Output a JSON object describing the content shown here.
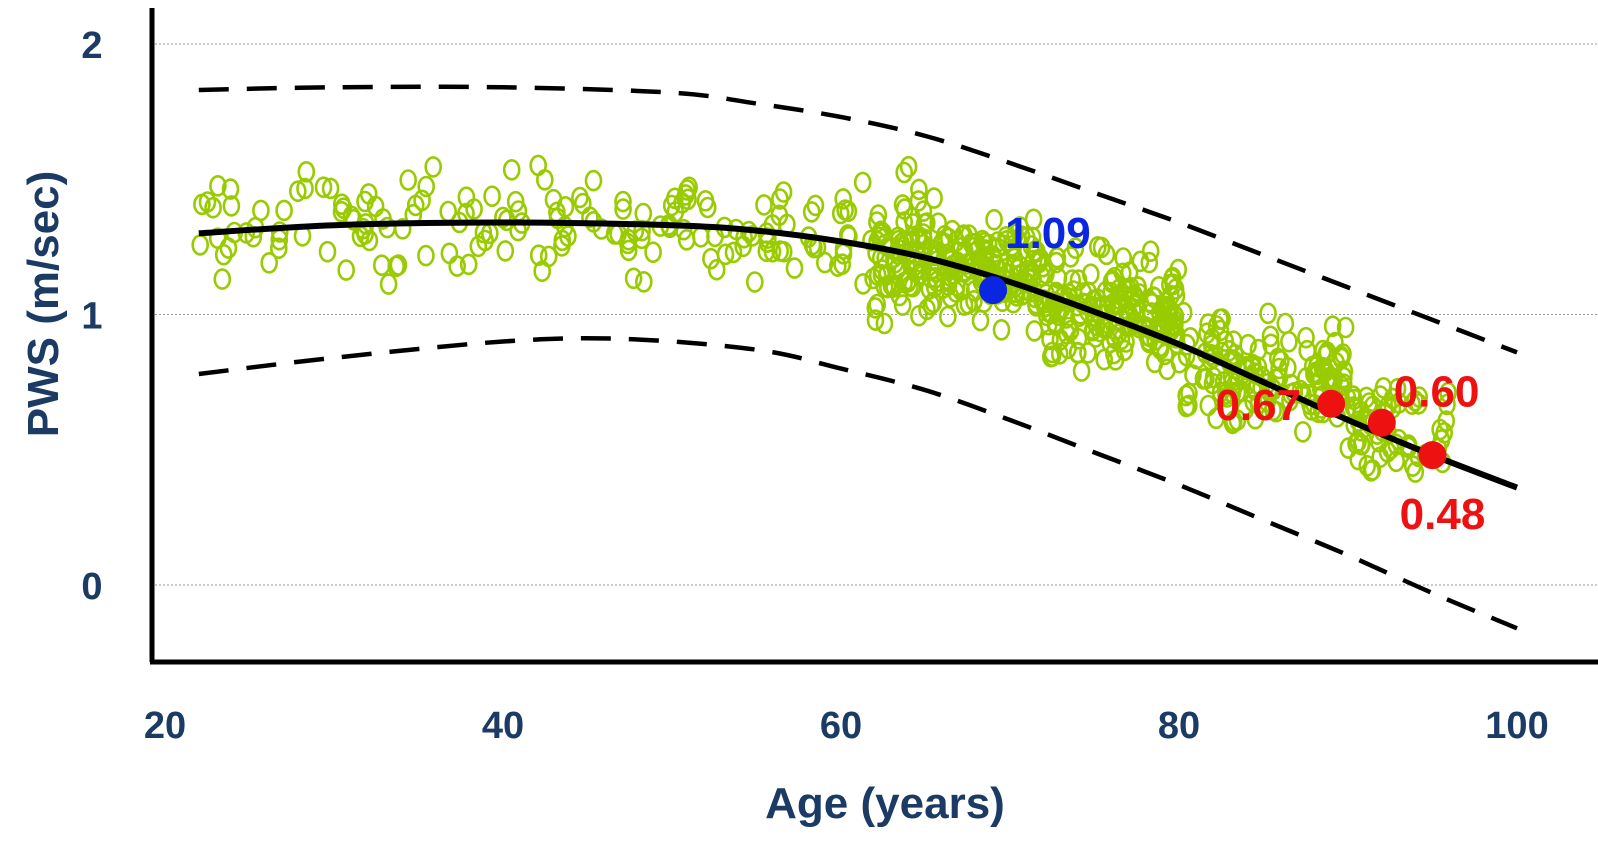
{
  "chart_data": {
    "type": "scatter",
    "xlabel": "Age (years)",
    "ylabel": "PWS (m/sec)",
    "xlim": [
      20,
      100
    ],
    "ylim": [
      -0.28,
      2.12
    ],
    "x_ticks": [
      {
        "value": 20,
        "label": "20"
      },
      {
        "value": 40,
        "label": "40"
      },
      {
        "value": 60,
        "label": "60"
      },
      {
        "value": 80,
        "label": "80"
      },
      {
        "value": 100,
        "label": "100"
      }
    ],
    "y_ticks": [
      {
        "value": 0,
        "label": "0"
      },
      {
        "value": 1,
        "label": "1"
      },
      {
        "value": 2,
        "label": "2"
      }
    ],
    "grid": {
      "horizontal": true,
      "vertical": false
    },
    "colors": {
      "scatter": "#99cc00",
      "fit_line": "#000000",
      "highlight_blue": "#0b26e0",
      "highlight_red": "#ee1111",
      "axis_text": "#1b3a64",
      "grid": "#9a9a9a"
    },
    "fit_curve": {
      "style": "solid",
      "points": [
        [
          22,
          1.3
        ],
        [
          30,
          1.33
        ],
        [
          40,
          1.34
        ],
        [
          50,
          1.33
        ],
        [
          55,
          1.31
        ],
        [
          60,
          1.27
        ],
        [
          65,
          1.21
        ],
        [
          70,
          1.12
        ],
        [
          75,
          1.01
        ],
        [
          80,
          0.89
        ],
        [
          85,
          0.75
        ],
        [
          90,
          0.61
        ],
        [
          95,
          0.48
        ],
        [
          100,
          0.36
        ]
      ]
    },
    "upper_band": {
      "style": "dashed",
      "points": [
        [
          22,
          1.83
        ],
        [
          30,
          1.84
        ],
        [
          40,
          1.84
        ],
        [
          50,
          1.82
        ],
        [
          55,
          1.78
        ],
        [
          60,
          1.73
        ],
        [
          65,
          1.66
        ],
        [
          70,
          1.56
        ],
        [
          75,
          1.45
        ],
        [
          80,
          1.34
        ],
        [
          85,
          1.22
        ],
        [
          90,
          1.1
        ],
        [
          95,
          0.98
        ],
        [
          100,
          0.86
        ]
      ]
    },
    "lower_band": {
      "style": "dashed",
      "points": [
        [
          22,
          0.78
        ],
        [
          30,
          0.84
        ],
        [
          40,
          0.9
        ],
        [
          47,
          0.91
        ],
        [
          55,
          0.87
        ],
        [
          60,
          0.8
        ],
        [
          65,
          0.72
        ],
        [
          70,
          0.61
        ],
        [
          75,
          0.49
        ],
        [
          80,
          0.37
        ],
        [
          85,
          0.24
        ],
        [
          90,
          0.11
        ],
        [
          95,
          -0.03
        ],
        [
          100,
          -0.16
        ]
      ]
    },
    "highlighted_points": [
      {
        "x": 69,
        "y": 1.09,
        "label": "1.09",
        "color": "blue",
        "label_position": "upper-right"
      },
      {
        "x": 89,
        "y": 0.67,
        "label": "0.67",
        "color": "red",
        "label_position": "left"
      },
      {
        "x": 92,
        "y": 0.6,
        "label": "0.60",
        "color": "red",
        "label_position": "upper-right"
      },
      {
        "x": 95,
        "y": 0.48,
        "label": "0.48",
        "color": "red",
        "label_position": "below"
      }
    ],
    "scatter_clusters": [
      {
        "x_range": [
          22,
          65
        ],
        "y_center": 1.33,
        "y_spread": 0.34,
        "count": 190
      },
      {
        "x_range": [
          62,
          72
        ],
        "y_center": 1.18,
        "y_spread": 0.34,
        "count": 210
      },
      {
        "x_range": [
          72,
          80
        ],
        "y_center": 1.0,
        "y_spread": 0.36,
        "count": 190
      },
      {
        "x_range": [
          80,
          90
        ],
        "y_center": 0.78,
        "y_spread": 0.33,
        "count": 150
      },
      {
        "x_range": [
          90,
          96
        ],
        "y_center": 0.58,
        "y_spread": 0.3,
        "count": 60
      }
    ]
  }
}
